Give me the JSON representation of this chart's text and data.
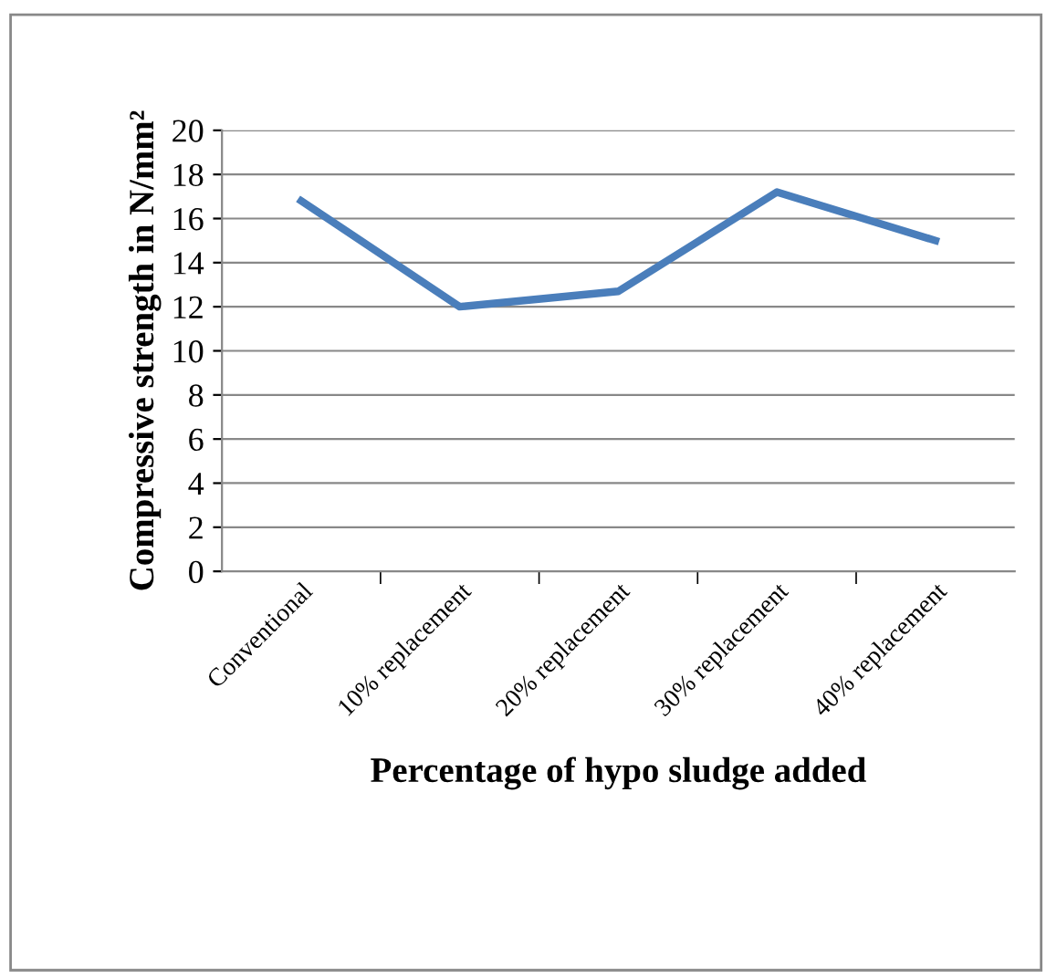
{
  "chart_data": {
    "type": "line",
    "xlabel": "Percentage of hypo sludge added",
    "ylabel": "Compressive strength in N/mm²",
    "categories": [
      "Conventional",
      "10% replacement",
      "20% replacement",
      "30% replacement",
      "40% replacement"
    ],
    "series": [
      {
        "color": "#4a7ebb",
        "values": [
          16.8,
          12.0,
          12.7,
          17.2,
          15.0
        ]
      }
    ],
    "ylim": [
      0,
      20
    ],
    "yticks": [
      0,
      2,
      4,
      6,
      8,
      10,
      12,
      14,
      16,
      18,
      20
    ],
    "grid": "y",
    "legend": false,
    "marker": "none",
    "line_style": "solid"
  }
}
